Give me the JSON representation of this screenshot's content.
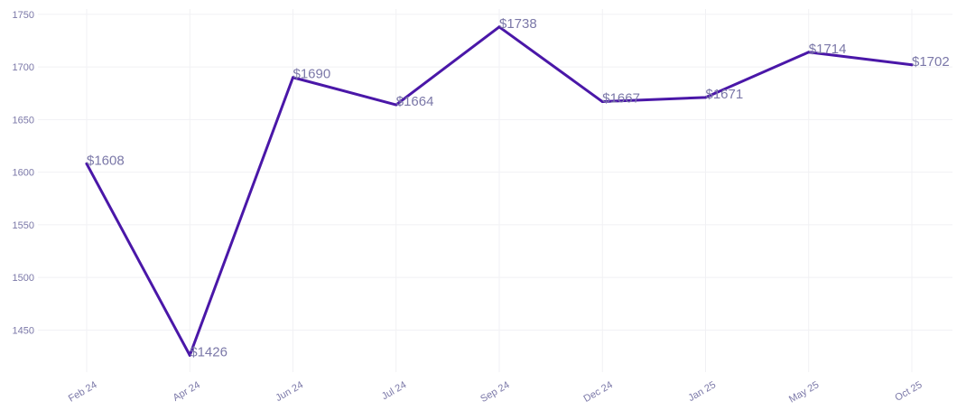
{
  "colors": {
    "line": "#4a17a8",
    "text": "#7b78a8",
    "grid": "#f1f1f4"
  },
  "chart_data": {
    "type": "line",
    "categories": [
      "Feb 24",
      "Apr 24",
      "Jun 24",
      "Jul 24",
      "Sep 24",
      "Dec 24",
      "Jan 25",
      "May 25",
      "Oct 25"
    ],
    "series": [
      {
        "values": [
          1608,
          1426,
          1690,
          1664,
          1738,
          1667,
          1671,
          1714,
          1702
        ]
      }
    ],
    "data_labels": [
      "$1608",
      "$1426",
      "$1690",
      "$1664",
      "$1738",
      "$1667",
      "$1671",
      "$1714",
      "$1702"
    ],
    "yticks": [
      1450,
      1500,
      1550,
      1600,
      1650,
      1700,
      1750
    ],
    "ylim": [
      1410,
      1755
    ],
    "title": "",
    "xlabel": "",
    "ylabel": "",
    "grid": true,
    "legend": "none",
    "x_tick_rotation": -30
  }
}
